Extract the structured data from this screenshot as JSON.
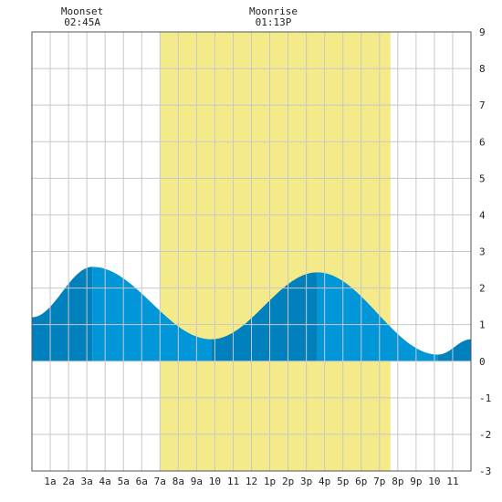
{
  "chart_data": {
    "type": "area",
    "title": "",
    "xlabel": "",
    "ylabel": "",
    "x_range_hours": [
      0,
      24
    ],
    "ylim": [
      -3,
      9
    ],
    "y_ticks": [
      -3,
      -2,
      -1,
      0,
      1,
      2,
      3,
      4,
      5,
      6,
      7,
      8,
      9
    ],
    "x_tick_labels": [
      "1a",
      "2a",
      "3a",
      "4a",
      "5a",
      "6a",
      "7a",
      "8a",
      "9a",
      "10",
      "11",
      "12",
      "1p",
      "2p",
      "3p",
      "4p",
      "5p",
      "6p",
      "7p",
      "8p",
      "9p",
      "10",
      "11"
    ],
    "grid": true,
    "daylight_hours": [
      7.0,
      19.6
    ],
    "tide_extremes": [
      {
        "hour": 0.0,
        "value": 1.2
      },
      {
        "hour": 3.3,
        "value": 2.58
      },
      {
        "hour": 9.8,
        "value": 0.6
      },
      {
        "hour": 15.6,
        "value": 2.43
      },
      {
        "hour": 22.2,
        "value": 0.18
      },
      {
        "hour": 24.0,
        "value": 0.6
      }
    ],
    "moon_events": [
      {
        "label": "Moonset",
        "time": "02:45A",
        "hour": 2.75
      },
      {
        "label": "Moonrise",
        "time": "01:13P",
        "hour": 13.2
      }
    ],
    "colors": {
      "tide_light": "#0096d8",
      "tide_dark": "#0080bc",
      "daylight": "#f5ea8a",
      "grid": "#c8c8c8",
      "frame": "#555555"
    }
  }
}
